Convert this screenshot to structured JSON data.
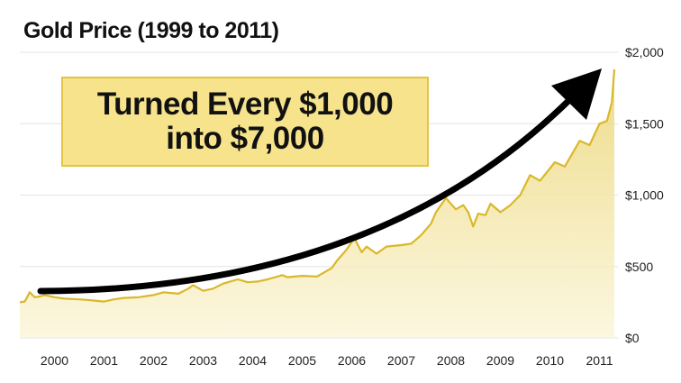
{
  "chart_data": {
    "type": "area",
    "title": "Gold Price (1999 to 2011)",
    "xlabel": "",
    "ylabel": "",
    "ylim": [
      0,
      2000
    ],
    "xlim": [
      1999.6,
      2011.65
    ],
    "y_ticks": [
      "$0",
      "$500",
      "$1,000",
      "$1,500",
      "$2,000"
    ],
    "y_tick_values": [
      0,
      500,
      1000,
      1500,
      2000
    ],
    "x_ticks": [
      "2000",
      "2001",
      "2002",
      "2003",
      "2004",
      "2005",
      "2006",
      "2007",
      "2008",
      "2009",
      "2010",
      "2011"
    ],
    "grid": true,
    "y_axis_side": "right",
    "line_color": "#d9b82a",
    "fill_color": "#f3e29a",
    "series": [
      {
        "x": [
          1999.6,
          1999.7,
          1999.8,
          1999.9,
          2000.0,
          2000.1,
          2000.3,
          2000.5,
          2000.8,
          2001.0,
          2001.3,
          2001.5,
          2001.7,
          2002.0,
          2002.3,
          2002.5,
          2002.8,
          2003.0,
          2003.1,
          2003.3,
          2003.5,
          2003.7,
          2004.0,
          2004.2,
          2004.4,
          2004.6,
          2004.9,
          2005.0,
          2005.3,
          2005.6,
          2005.9,
          2006.0,
          2006.2,
          2006.35,
          2006.5,
          2006.6,
          2006.8,
          2007.0,
          2007.3,
          2007.5,
          2007.7,
          2007.9,
          2008.0,
          2008.2,
          2008.4,
          2008.55,
          2008.65,
          2008.75,
          2008.85,
          2009.0,
          2009.1,
          2009.3,
          2009.5,
          2009.7,
          2009.9,
          2010.1,
          2010.4,
          2010.6,
          2010.9,
          2011.1,
          2011.3,
          2011.45,
          2011.55,
          2011.6
        ],
        "values": [
          250,
          255,
          320,
          285,
          290,
          300,
          285,
          275,
          270,
          265,
          255,
          270,
          280,
          285,
          300,
          320,
          310,
          345,
          370,
          330,
          345,
          380,
          410,
          390,
          395,
          410,
          440,
          425,
          435,
          430,
          490,
          540,
          620,
          700,
          600,
          640,
          590,
          640,
          650,
          660,
          720,
          800,
          880,
          980,
          900,
          930,
          880,
          780,
          870,
          860,
          940,
          880,
          930,
          1000,
          1140,
          1100,
          1230,
          1200,
          1380,
          1350,
          1500,
          1520,
          1650,
          1880
        ]
      }
    ],
    "annotations": {
      "callout_line1": "Turned Every $1,000",
      "callout_line2": "into $7,000",
      "arrow": "upward trend arrow"
    }
  }
}
